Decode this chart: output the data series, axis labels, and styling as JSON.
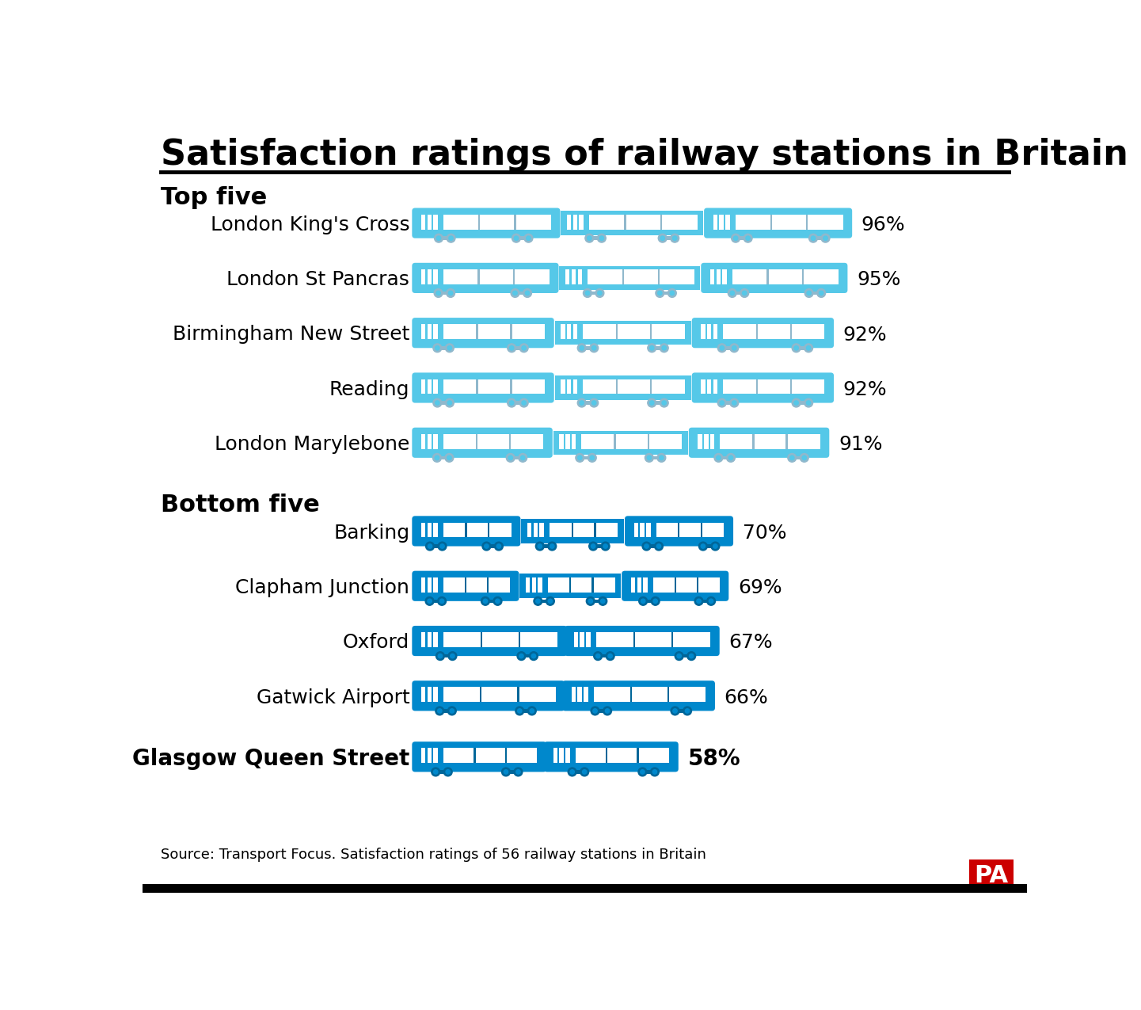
{
  "title": "Satisfaction ratings of railway stations in Britain",
  "top_five_label": "Top five",
  "bottom_five_label": "Bottom five",
  "top_stations": [
    {
      "name": "London King's Cross",
      "value": 96,
      "bold": false
    },
    {
      "name": "London St Pancras",
      "value": 95,
      "bold": false
    },
    {
      "name": "Birmingham New Street",
      "value": 92,
      "bold": false
    },
    {
      "name": "Reading",
      "value": 92,
      "bold": false
    },
    {
      "name": "London Marylebone",
      "value": 91,
      "bold": false
    }
  ],
  "bottom_stations": [
    {
      "name": "Barking",
      "value": 70,
      "bold": false
    },
    {
      "name": "Clapham Junction",
      "value": 69,
      "bold": false
    },
    {
      "name": "Oxford",
      "value": 67,
      "bold": false
    },
    {
      "name": "Gatwick Airport",
      "value": 66,
      "bold": false
    },
    {
      "name": "Glasgow Queen Street",
      "value": 58,
      "bold": true
    }
  ],
  "top_color": "#55C8E8",
  "top_color_dark": "#90B8CC",
  "bottom_color": "#0088CC",
  "bottom_color_dark": "#006699",
  "window_white": "#FFFFFF",
  "bg_color": "#FFFFFF",
  "text_color": "#000000",
  "source_text": "Source: Transport Focus. Satisfaction ratings of 56 railway stations in Britain",
  "pa_bg": "#CC0000",
  "pa_text": "PA",
  "title_fontsize": 32,
  "section_fontsize": 22,
  "label_fontsize": 18,
  "value_fontsize": 18,
  "source_fontsize": 13
}
